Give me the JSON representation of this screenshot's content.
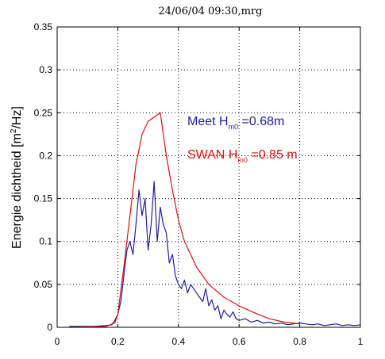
{
  "chart_data": {
    "type": "line",
    "title": "24/06/04 09:30,mrg",
    "ylabel_main": "Energie dichtheid [m",
    "ylabel_sup": "2",
    "ylabel_tail": "/Hz]",
    "xlim": [
      0,
      1
    ],
    "ylim": [
      0,
      0.35
    ],
    "xticks": [
      "0",
      "0.2",
      "0.4",
      "0.6",
      "0.8",
      "1"
    ],
    "yticks": [
      "0",
      "0.05",
      "0.1",
      "0.15",
      "0.2",
      "0.25",
      "0.3",
      "0.35"
    ],
    "grid": true,
    "annotations": [
      {
        "prefix": "Meet H",
        "sub": "m0",
        "suffix": " =0.68m",
        "color": "#1f1fa0"
      },
      {
        "prefix": "SWAN H",
        "sub": "m0",
        "suffix": " =0.85 m",
        "color": "#e01010"
      }
    ],
    "series": [
      {
        "color": "#1f1fa0",
        "x": [
          0.04,
          0.08,
          0.12,
          0.16,
          0.18,
          0.19,
          0.2,
          0.21,
          0.22,
          0.23,
          0.24,
          0.25,
          0.26,
          0.27,
          0.28,
          0.29,
          0.3,
          0.31,
          0.32,
          0.33,
          0.34,
          0.35,
          0.36,
          0.37,
          0.38,
          0.39,
          0.4,
          0.41,
          0.42,
          0.43,
          0.44,
          0.45,
          0.46,
          0.47,
          0.48,
          0.49,
          0.5,
          0.51,
          0.52,
          0.53,
          0.54,
          0.55,
          0.56,
          0.57,
          0.58,
          0.59,
          0.6,
          0.62,
          0.64,
          0.66,
          0.68,
          0.7,
          0.72,
          0.74,
          0.76,
          0.78,
          0.8,
          0.82,
          0.84,
          0.86,
          0.88,
          0.9,
          0.92,
          0.94,
          0.96,
          0.98,
          1.0
        ],
        "y": [
          0.001,
          0.001,
          0.001,
          0.002,
          0.003,
          0.008,
          0.015,
          0.03,
          0.06,
          0.09,
          0.1,
          0.085,
          0.12,
          0.16,
          0.13,
          0.15,
          0.09,
          0.12,
          0.17,
          0.1,
          0.14,
          0.12,
          0.11,
          0.075,
          0.085,
          0.06,
          0.05,
          0.045,
          0.055,
          0.04,
          0.05,
          0.045,
          0.04,
          0.035,
          0.03,
          0.045,
          0.025,
          0.032,
          0.02,
          0.025,
          0.01,
          0.02,
          0.015,
          0.012,
          0.018,
          0.01,
          0.008,
          0.01,
          0.006,
          0.008,
          0.005,
          0.006,
          0.004,
          0.005,
          0.003,
          0.004,
          0.005,
          0.004,
          0.003,
          0.004,
          0.002,
          0.003,
          0.004,
          0.002,
          0.003,
          0.002,
          0.003
        ]
      },
      {
        "color": "#e01010",
        "x": [
          0.04,
          0.16,
          0.19,
          0.2,
          0.22,
          0.24,
          0.26,
          0.28,
          0.3,
          0.32,
          0.34,
          0.36,
          0.38,
          0.4,
          0.42,
          0.44,
          0.46,
          0.48,
          0.5,
          0.55,
          0.6,
          0.65,
          0.7,
          0.75,
          0.8
        ],
        "y": [
          0.0,
          0.001,
          0.005,
          0.015,
          0.07,
          0.13,
          0.19,
          0.225,
          0.24,
          0.245,
          0.25,
          0.2,
          0.16,
          0.125,
          0.1,
          0.085,
          0.07,
          0.06,
          0.05,
          0.035,
          0.025,
          0.017,
          0.01,
          0.006,
          0.004
        ]
      }
    ]
  }
}
